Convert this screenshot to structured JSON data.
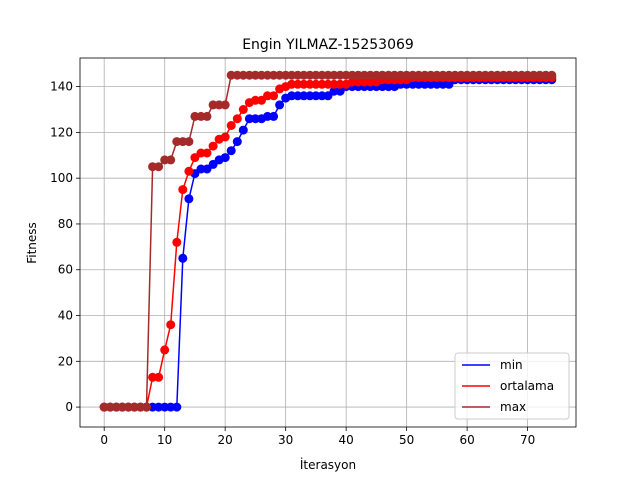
{
  "chart_data": {
    "type": "line",
    "title": "Engin YILMAZ-15253069",
    "xlabel": "İterasyon",
    "ylabel": "Fitness",
    "xlim": [
      -4,
      78
    ],
    "ylim": [
      -8.7,
      152.5
    ],
    "xticks": [
      0,
      10,
      20,
      30,
      40,
      50,
      60,
      70
    ],
    "yticks": [
      0,
      20,
      40,
      60,
      80,
      100,
      120,
      140
    ],
    "grid": true,
    "legend_position": "lower-right",
    "markers": true,
    "x": [
      0,
      1,
      2,
      3,
      4,
      5,
      6,
      7,
      8,
      9,
      10,
      11,
      12,
      13,
      14,
      15,
      16,
      17,
      18,
      19,
      20,
      21,
      22,
      23,
      24,
      25,
      26,
      27,
      28,
      29,
      30,
      31,
      32,
      33,
      34,
      35,
      36,
      37,
      38,
      39,
      40,
      41,
      42,
      43,
      44,
      45,
      46,
      47,
      48,
      49,
      50,
      51,
      52,
      53,
      54,
      55,
      56,
      57,
      58,
      59,
      60,
      61,
      62,
      63,
      64,
      65,
      66,
      67,
      68,
      69,
      70,
      71,
      72,
      73,
      74
    ],
    "series": [
      {
        "name": "min",
        "color": "#0000ff",
        "values": [
          0,
          0,
          0,
          0,
          0,
          0,
          0,
          0,
          0,
          0,
          0,
          0,
          0,
          65,
          91,
          102,
          104,
          104,
          106,
          108,
          109,
          112,
          116,
          121,
          126,
          126,
          126,
          127,
          127,
          132,
          135,
          136,
          136,
          136,
          136,
          136,
          136,
          136,
          138,
          138,
          140,
          140,
          140,
          140,
          140,
          140,
          140,
          140,
          140,
          141,
          141,
          141,
          141,
          141,
          141,
          141,
          141,
          141,
          143,
          143,
          143,
          143,
          143,
          143,
          143,
          143,
          143,
          143,
          143,
          143,
          143,
          143,
          143,
          143,
          143
        ]
      },
      {
        "name": "ortalama",
        "color": "#ff0000",
        "values": [
          0,
          0,
          0,
          0,
          0,
          0,
          0,
          0,
          13,
          13,
          25,
          36,
          72,
          95,
          103,
          109,
          111,
          111,
          114,
          117,
          118,
          123,
          126,
          130,
          133,
          134,
          134,
          136,
          136,
          139,
          140,
          141,
          141,
          141,
          141,
          141,
          141,
          141,
          141,
          141,
          141,
          142,
          142,
          142,
          142,
          142,
          143,
          143,
          143,
          143,
          143,
          144,
          144,
          144,
          144,
          144,
          144,
          144,
          144,
          144,
          144,
          144,
          144,
          144,
          144,
          144,
          144,
          144,
          144,
          144,
          144,
          144,
          144,
          144,
          144
        ]
      },
      {
        "name": "max",
        "color": "#a52a2a",
        "values": [
          0,
          0,
          0,
          0,
          0,
          0,
          0,
          0,
          105,
          105,
          108,
          108,
          116,
          116,
          116,
          127,
          127,
          127,
          132,
          132,
          132,
          145,
          145,
          145,
          145,
          145,
          145,
          145,
          145,
          145,
          145,
          145,
          145,
          145,
          145,
          145,
          145,
          145,
          145,
          145,
          145,
          145,
          145,
          145,
          145,
          145,
          145,
          145,
          145,
          145,
          145,
          145,
          145,
          145,
          145,
          145,
          145,
          145,
          145,
          145,
          145,
          145,
          145,
          145,
          145,
          145,
          145,
          145,
          145,
          145,
          145,
          145,
          145,
          145,
          145
        ]
      }
    ]
  }
}
